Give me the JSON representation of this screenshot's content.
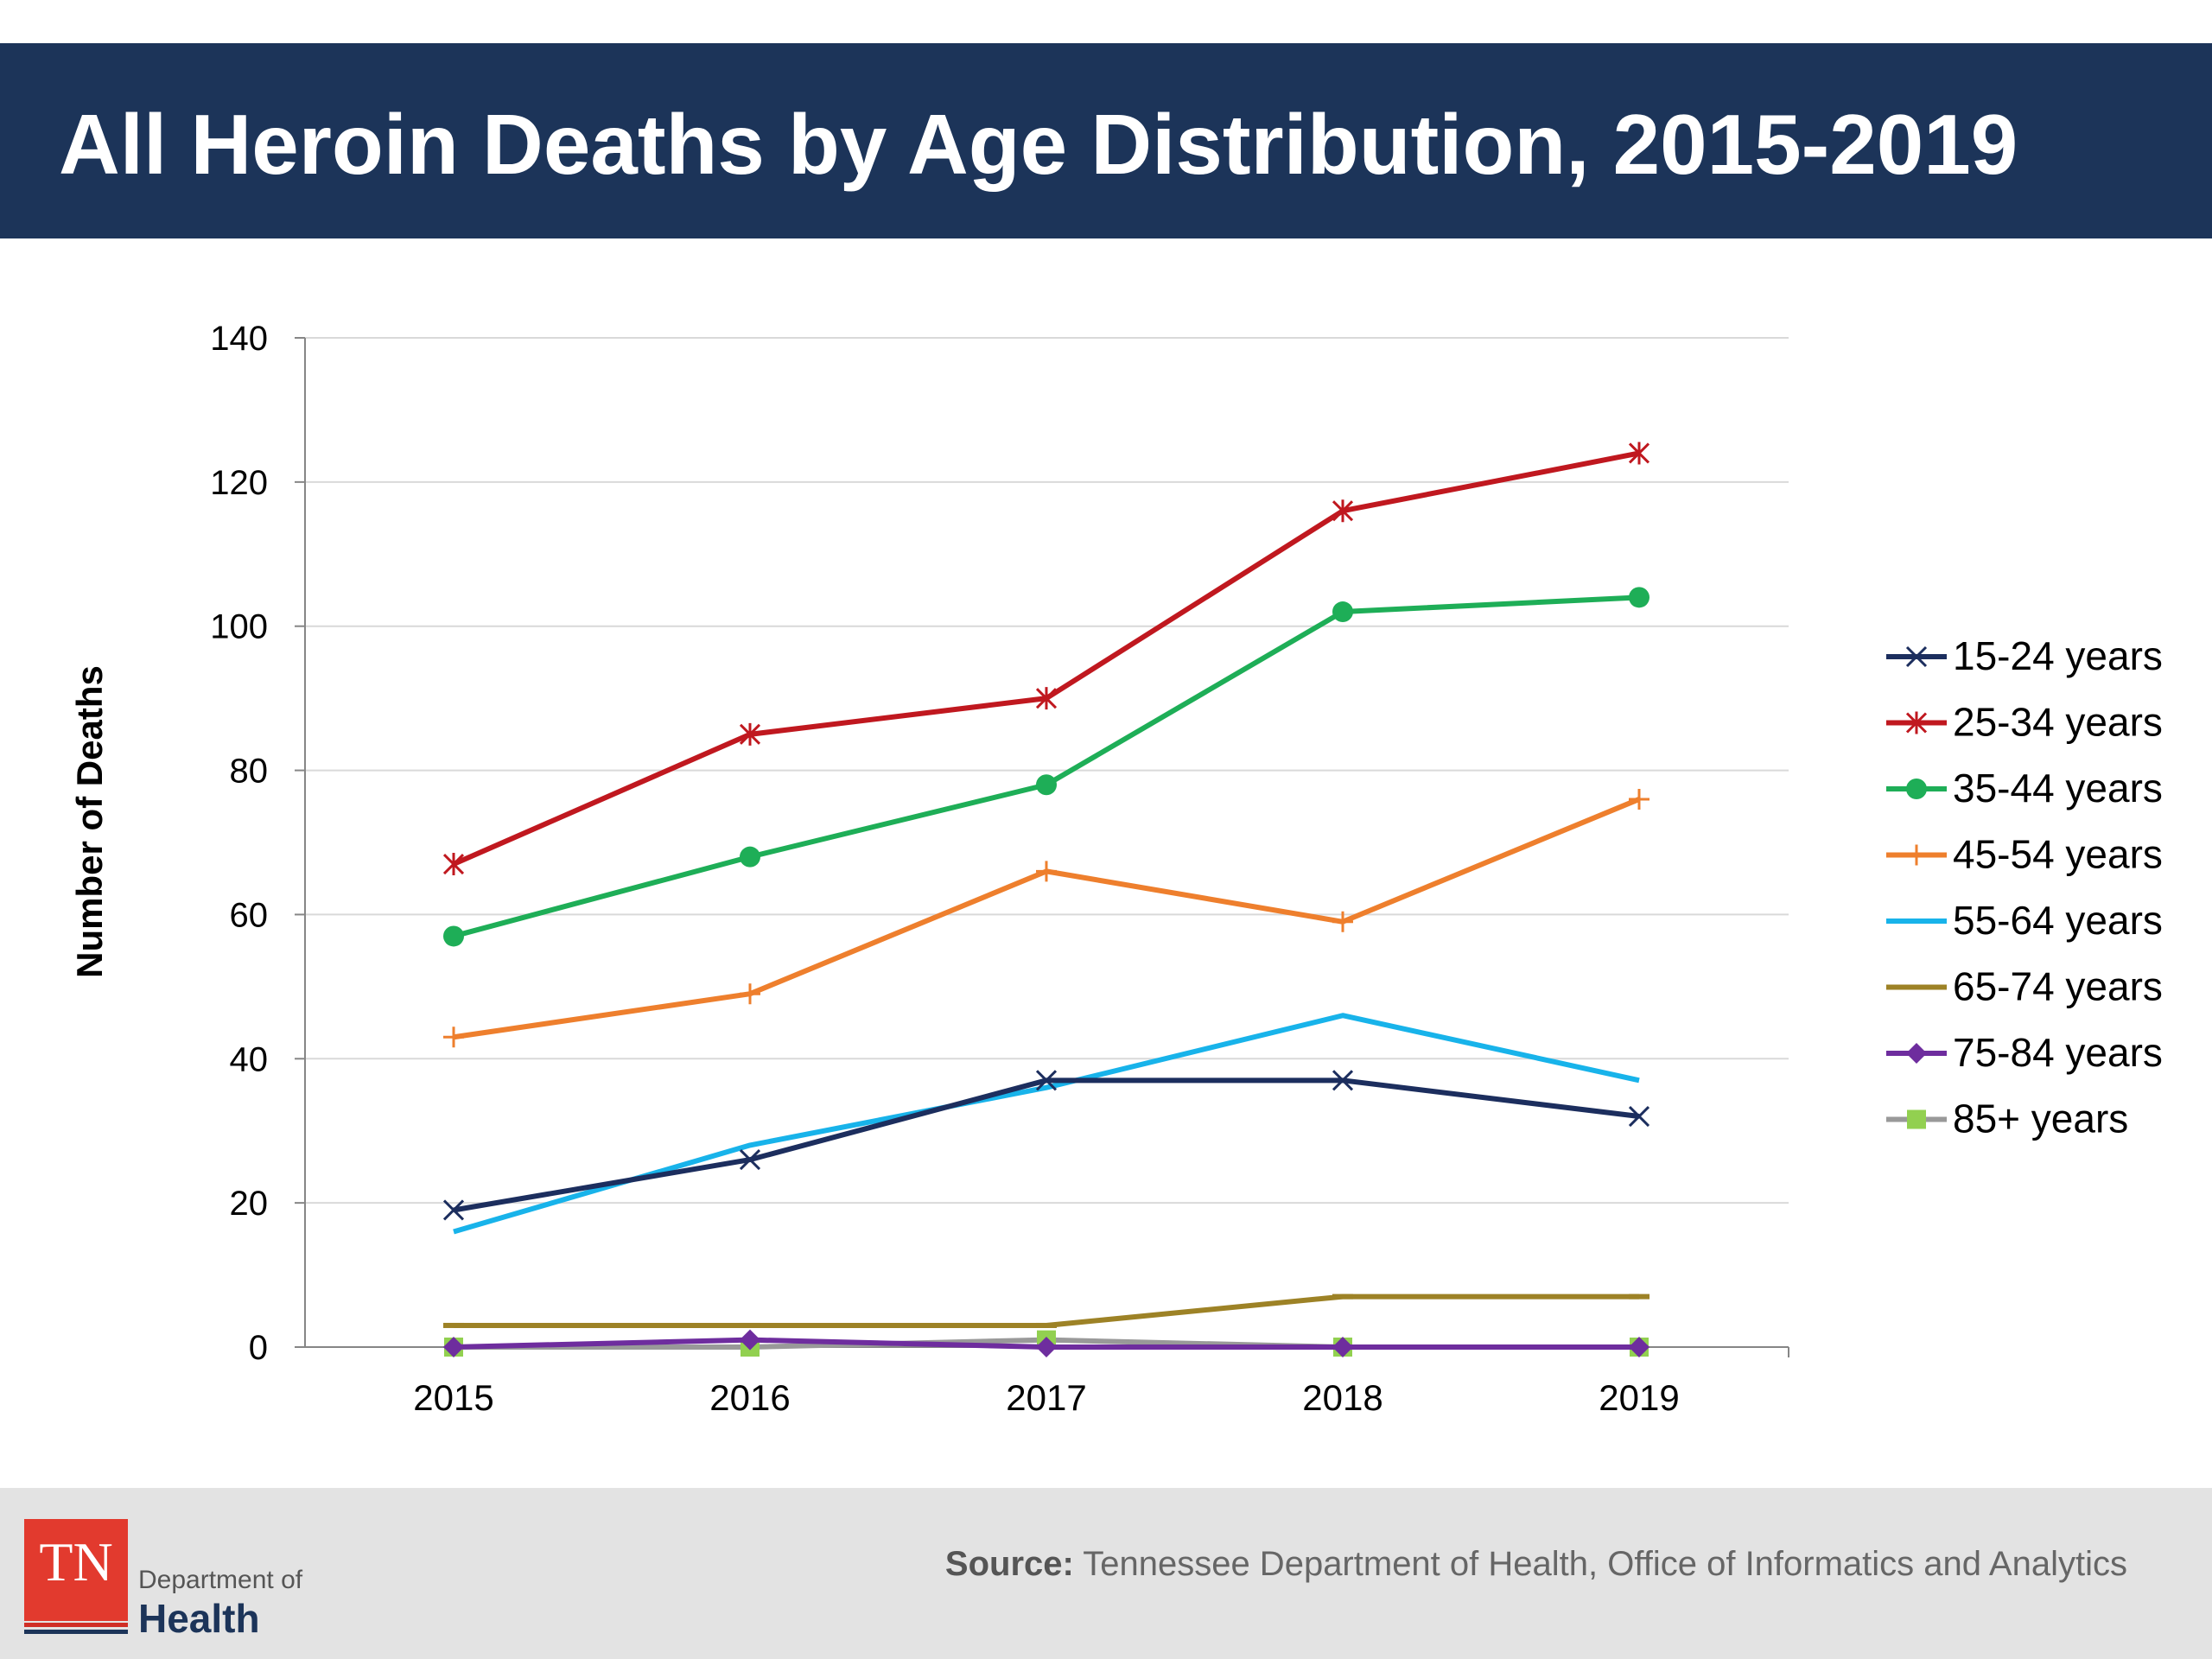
{
  "header": {
    "title": "All Heroin Deaths by Age Distribution, 2015-2019"
  },
  "footer": {
    "source_label": "Source:",
    "source_text": "Tennessee Department of Health, Office of Informatics and Analytics",
    "logo_mark": "TN",
    "logo_dept": "Department of",
    "logo_health": "Health"
  },
  "chart_data": {
    "type": "line",
    "title": "All Heroin Deaths by Age Distribution, 2015-2019",
    "xlabel": "",
    "ylabel": "Number of Deaths",
    "categories": [
      "2015",
      "2016",
      "2017",
      "2018",
      "2019"
    ],
    "ylim": [
      0,
      140
    ],
    "yticks": [
      0,
      20,
      40,
      60,
      80,
      100,
      120,
      140
    ],
    "grid": true,
    "legend_position": "right",
    "series": [
      {
        "name": "15-24 years",
        "values": [
          19,
          26,
          37,
          37,
          32
        ],
        "color": "#1c2e5e",
        "marker": "x"
      },
      {
        "name": "25-34 years",
        "values": [
          67,
          85,
          90,
          116,
          124
        ],
        "color": "#c0181f",
        "marker": "asterisk"
      },
      {
        "name": "35-44 years",
        "values": [
          57,
          68,
          78,
          102,
          104
        ],
        "color": "#1eae57",
        "marker": "circle"
      },
      {
        "name": "45-54 years",
        "values": [
          43,
          49,
          66,
          59,
          76
        ],
        "color": "#ee7f2d",
        "marker": "plus"
      },
      {
        "name": "55-64 years",
        "values": [
          16,
          28,
          36,
          46,
          37
        ],
        "color": "#18b3ea",
        "marker": "none"
      },
      {
        "name": "65-74 years",
        "values": [
          3,
          3,
          3,
          7,
          7
        ],
        "color": "#9d8226",
        "marker": "dash"
      },
      {
        "name": "75-84 years",
        "values": [
          0,
          1,
          0,
          0,
          0
        ],
        "color": "#6e2d9e",
        "marker": "diamond"
      },
      {
        "name": "85+ years",
        "values": [
          0,
          0,
          1,
          0,
          0
        ],
        "color": "#999999",
        "marker": "square",
        "marker_color": "#92d050"
      }
    ]
  }
}
